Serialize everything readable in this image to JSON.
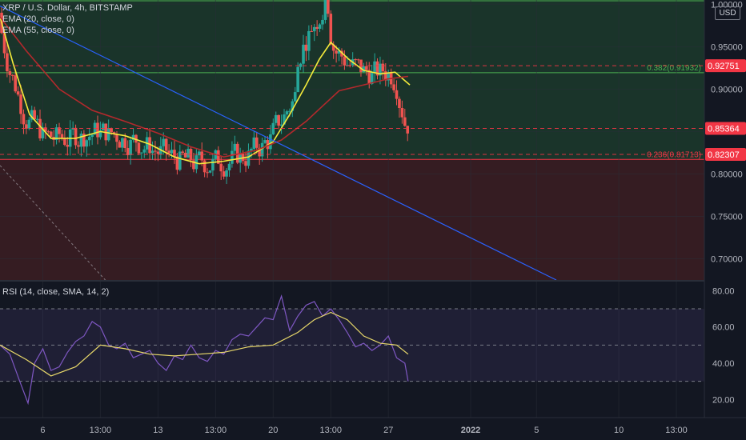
{
  "legend": {
    "title": "XRP / U.S. Dollar, 4h, BITSTAMP",
    "ema1": "EMA (20, close, 0)",
    "ema2": "EMA (55, close, 0)",
    "rsi": "RSI (14, close, SMA, 14, 2)"
  },
  "price_axis": {
    "unit": "USD",
    "ticks": [
      "1.00000",
      "0.95000",
      "0.90000",
      "0.85000",
      "0.80000",
      "0.75000",
      "0.70000"
    ],
    "tick_values": [
      1.0,
      0.95,
      0.9,
      0.85,
      0.8,
      0.75,
      0.7
    ],
    "tags": [
      {
        "label": "0.92751",
        "value": 0.92751,
        "color": "#f23645"
      },
      {
        "label": "0.85364",
        "value": 0.85364,
        "color": "#f23645"
      },
      {
        "label": "0.82307",
        "value": 0.82307,
        "color": "#f23645"
      }
    ]
  },
  "rsi_axis": {
    "ticks": [
      "80.00",
      "60.00",
      "40.00",
      "20.00"
    ],
    "tick_values": [
      80,
      60,
      40,
      20
    ],
    "levels": [
      70,
      50,
      30
    ]
  },
  "time_axis": {
    "ticks": [
      "6",
      "13:00",
      "13",
      "13:00",
      "20",
      "13:00",
      "27",
      "2022",
      "5",
      "10",
      "13:00"
    ],
    "tick_days": [
      6,
      9.5,
      13,
      16.5,
      20,
      23.5,
      27,
      32,
      36,
      41,
      44.5
    ]
  },
  "fib": [
    {
      "label": "0.382(0.91932)",
      "value": 0.91932,
      "color": "#4caf50"
    },
    {
      "label": "0.236(0.81713)",
      "value": 0.81713,
      "color": "#f23645"
    }
  ],
  "colors": {
    "up": "#26a69a",
    "down": "#ef5350",
    "ema1": "#f5eb3b",
    "ema2": "#b2292c",
    "trend": "#2962ff",
    "rsi": "#7e57c2",
    "rsi_ma": "#e8d86a"
  },
  "chart_data": [
    {
      "type": "candlestick",
      "title": "XRP / U.S. Dollar, 4h, BITSTAMP",
      "x_unit": "day (December 2021; 32 = 1 Jan 2022)",
      "ylim": [
        0.675,
        1.005
      ],
      "xlim": [
        3.4,
        46.2
      ],
      "series": [
        {
          "name": "EMA (20, close, 0)",
          "x": [
            3.4,
            4.2,
            5.2,
            6.5,
            8,
            9.5,
            11,
            12.5,
            14,
            15.5,
            17,
            18.5,
            20,
            21,
            22,
            22.8,
            23.5,
            24.6,
            25.5,
            26.5,
            27.4,
            28.3
          ],
          "y": [
            0.985,
            0.93,
            0.87,
            0.842,
            0.842,
            0.85,
            0.845,
            0.835,
            0.82,
            0.812,
            0.815,
            0.82,
            0.838,
            0.87,
            0.905,
            0.935,
            0.955,
            0.935,
            0.922,
            0.918,
            0.92,
            0.905
          ]
        },
        {
          "name": "EMA (55, close, 0)",
          "x": [
            3.4,
            5,
            7,
            9,
            11,
            13,
            15,
            17,
            19,
            20.5,
            22,
            23,
            24,
            25.5,
            27,
            28.2
          ],
          "y": [
            0.985,
            0.945,
            0.9,
            0.875,
            0.862,
            0.848,
            0.832,
            0.82,
            0.828,
            0.84,
            0.862,
            0.88,
            0.898,
            0.905,
            0.912,
            0.915
          ]
        },
        {
          "name": "trendline",
          "x": [
            3.4,
            37.2
          ],
          "y": [
            0.998,
            0.675
          ]
        }
      ],
      "fib_levels": [
        0.91932,
        0.81713
      ],
      "last_price": 0.85364
    },
    {
      "type": "line",
      "title": "RSI (14, close, SMA, 14, 2)",
      "ylim": [
        10,
        85
      ],
      "levels": [
        70,
        50,
        30
      ],
      "series": [
        {
          "name": "RSI",
          "x": [
            3.4,
            4,
            4.6,
            5.1,
            5.5,
            6,
            6.5,
            7,
            7.5,
            8,
            8.5,
            9,
            9.5,
            10,
            10.5,
            11,
            11.5,
            12,
            12.5,
            13,
            13.5,
            14,
            14.5,
            15,
            15.5,
            16,
            16.5,
            17,
            17.5,
            18,
            18.5,
            19,
            19.5,
            20,
            20.5,
            21,
            21.5,
            22,
            22.5,
            23,
            23.5,
            24,
            24.5,
            25,
            25.5,
            26,
            26.5,
            27,
            27.5,
            28,
            28.2
          ],
          "y": [
            50,
            45,
            30,
            18,
            40,
            48,
            36,
            38,
            46,
            52,
            55,
            63,
            60,
            50,
            48,
            51,
            43,
            45,
            47,
            40,
            36,
            44,
            42,
            50,
            43,
            41,
            47,
            45,
            53,
            56,
            55,
            60,
            65,
            64,
            77,
            58,
            66,
            72,
            74,
            66,
            70,
            64,
            57,
            49,
            51,
            47,
            50,
            55,
            43,
            40,
            30
          ]
        },
        {
          "name": "RSI MA",
          "x": [
            3.4,
            5,
            6.5,
            8,
            9.5,
            11,
            12.5,
            14,
            15.5,
            17,
            18.5,
            20,
            21.5,
            22.5,
            23.5,
            24.5,
            25.5,
            26.5,
            27.5,
            28.2
          ],
          "y": [
            50,
            42,
            33,
            38,
            50,
            48,
            45,
            44,
            45,
            46,
            49,
            50,
            57,
            64,
            68,
            64,
            55,
            51,
            50,
            45
          ]
        }
      ]
    }
  ]
}
